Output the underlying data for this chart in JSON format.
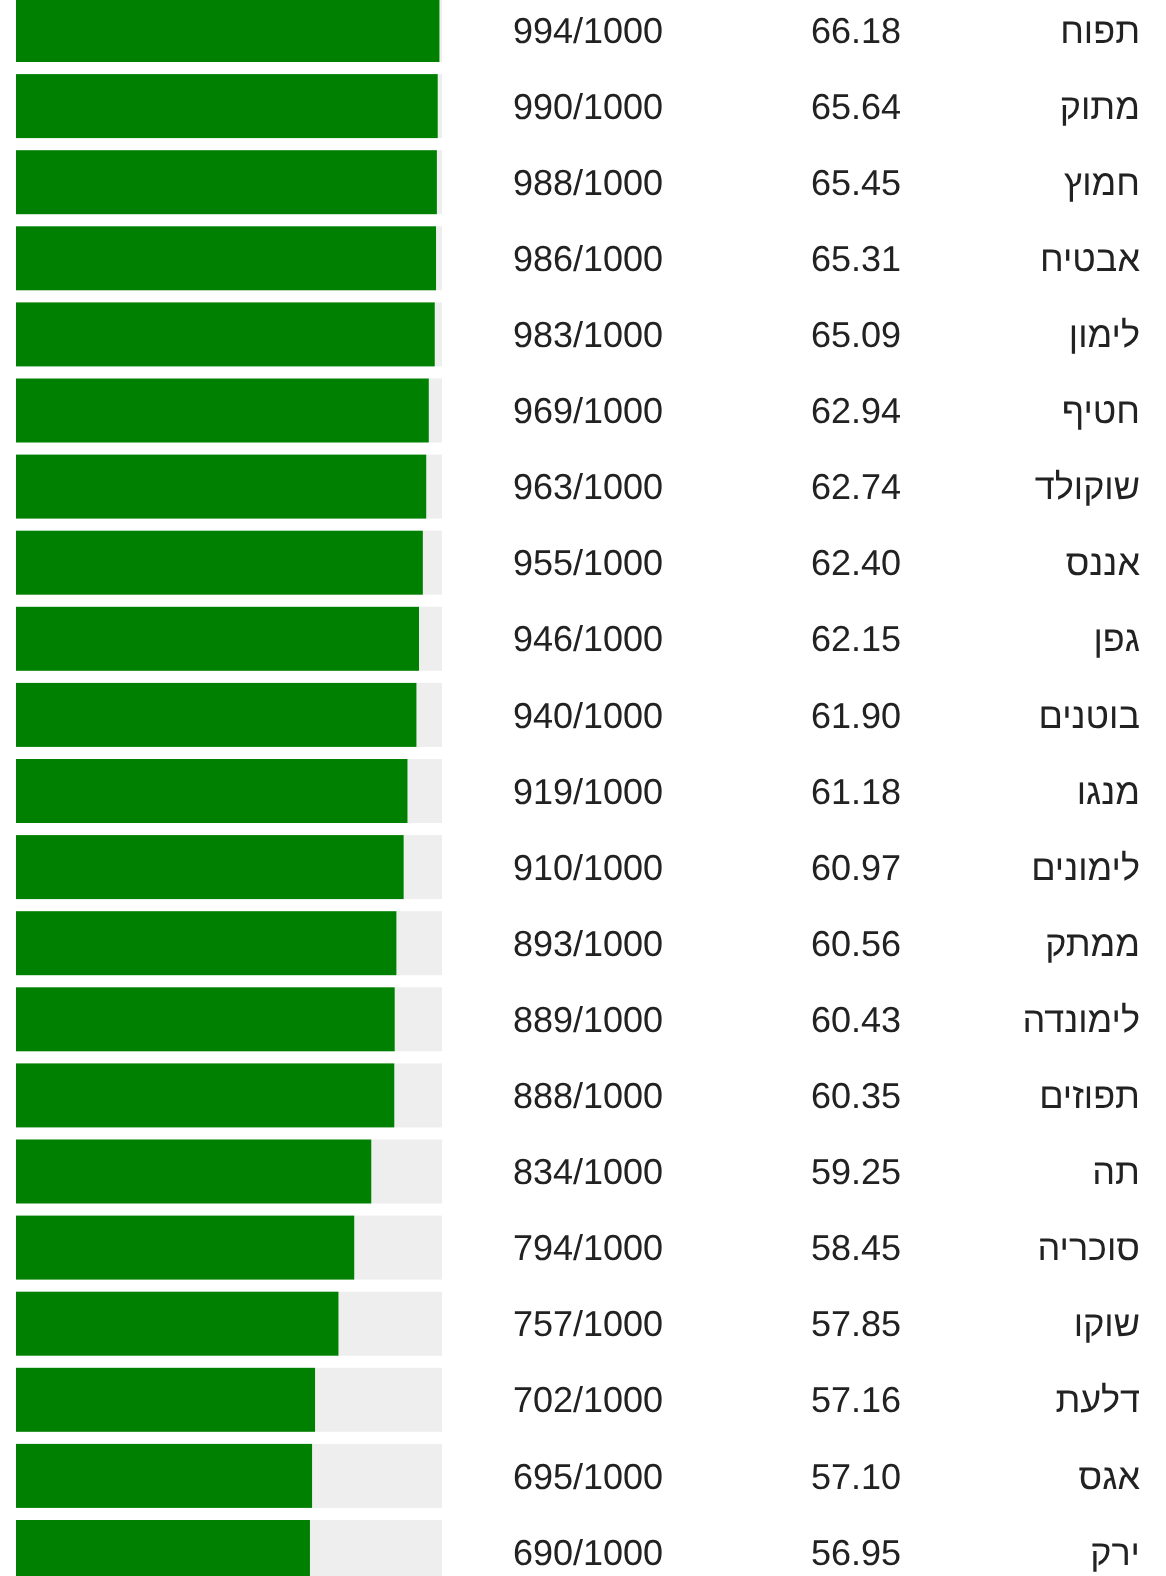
{
  "chart_data": {
    "type": "bar",
    "orientation": "horizontal",
    "xlim": [
      0,
      1000
    ],
    "categories": [
      "תפוח",
      "מתוק",
      "חמוץ",
      "אבטיח",
      "לימון",
      "חטיף",
      "שוקולד",
      "אננס",
      "גפן",
      "בוטנים",
      "מנגו",
      "לימונים",
      "ממתק",
      "לימונדה",
      "תפוזים",
      "תה",
      "סוכריה",
      "שוקו",
      "דלעת",
      "אגס",
      "ירק"
    ],
    "series": [
      {
        "color": "#008000",
        "values": [
          994,
          990,
          988,
          986,
          983,
          969,
          963,
          955,
          946,
          940,
          919,
          910,
          893,
          889,
          888,
          834,
          794,
          757,
          702,
          695,
          690
        ],
        "value_labels": [
          "994/1000",
          "990/1000",
          "988/1000",
          "986/1000",
          "983/1000",
          "969/1000",
          "963/1000",
          "955/1000",
          "946/1000",
          "940/1000",
          "919/1000",
          "910/1000",
          "893/1000",
          "889/1000",
          "888/1000",
          "834/1000",
          "794/1000",
          "757/1000",
          "702/1000",
          "695/1000",
          "690/1000"
        ]
      }
    ],
    "annotations": [
      "66.18",
      "65.64",
      "65.45",
      "65.31",
      "65.09",
      "62.94",
      "62.74",
      "62.40",
      "62.15",
      "61.90",
      "61.18",
      "60.97",
      "60.56",
      "60.43",
      "60.35",
      "59.25",
      "58.45",
      "57.85",
      "57.16",
      "57.10",
      "56.95"
    ]
  }
}
